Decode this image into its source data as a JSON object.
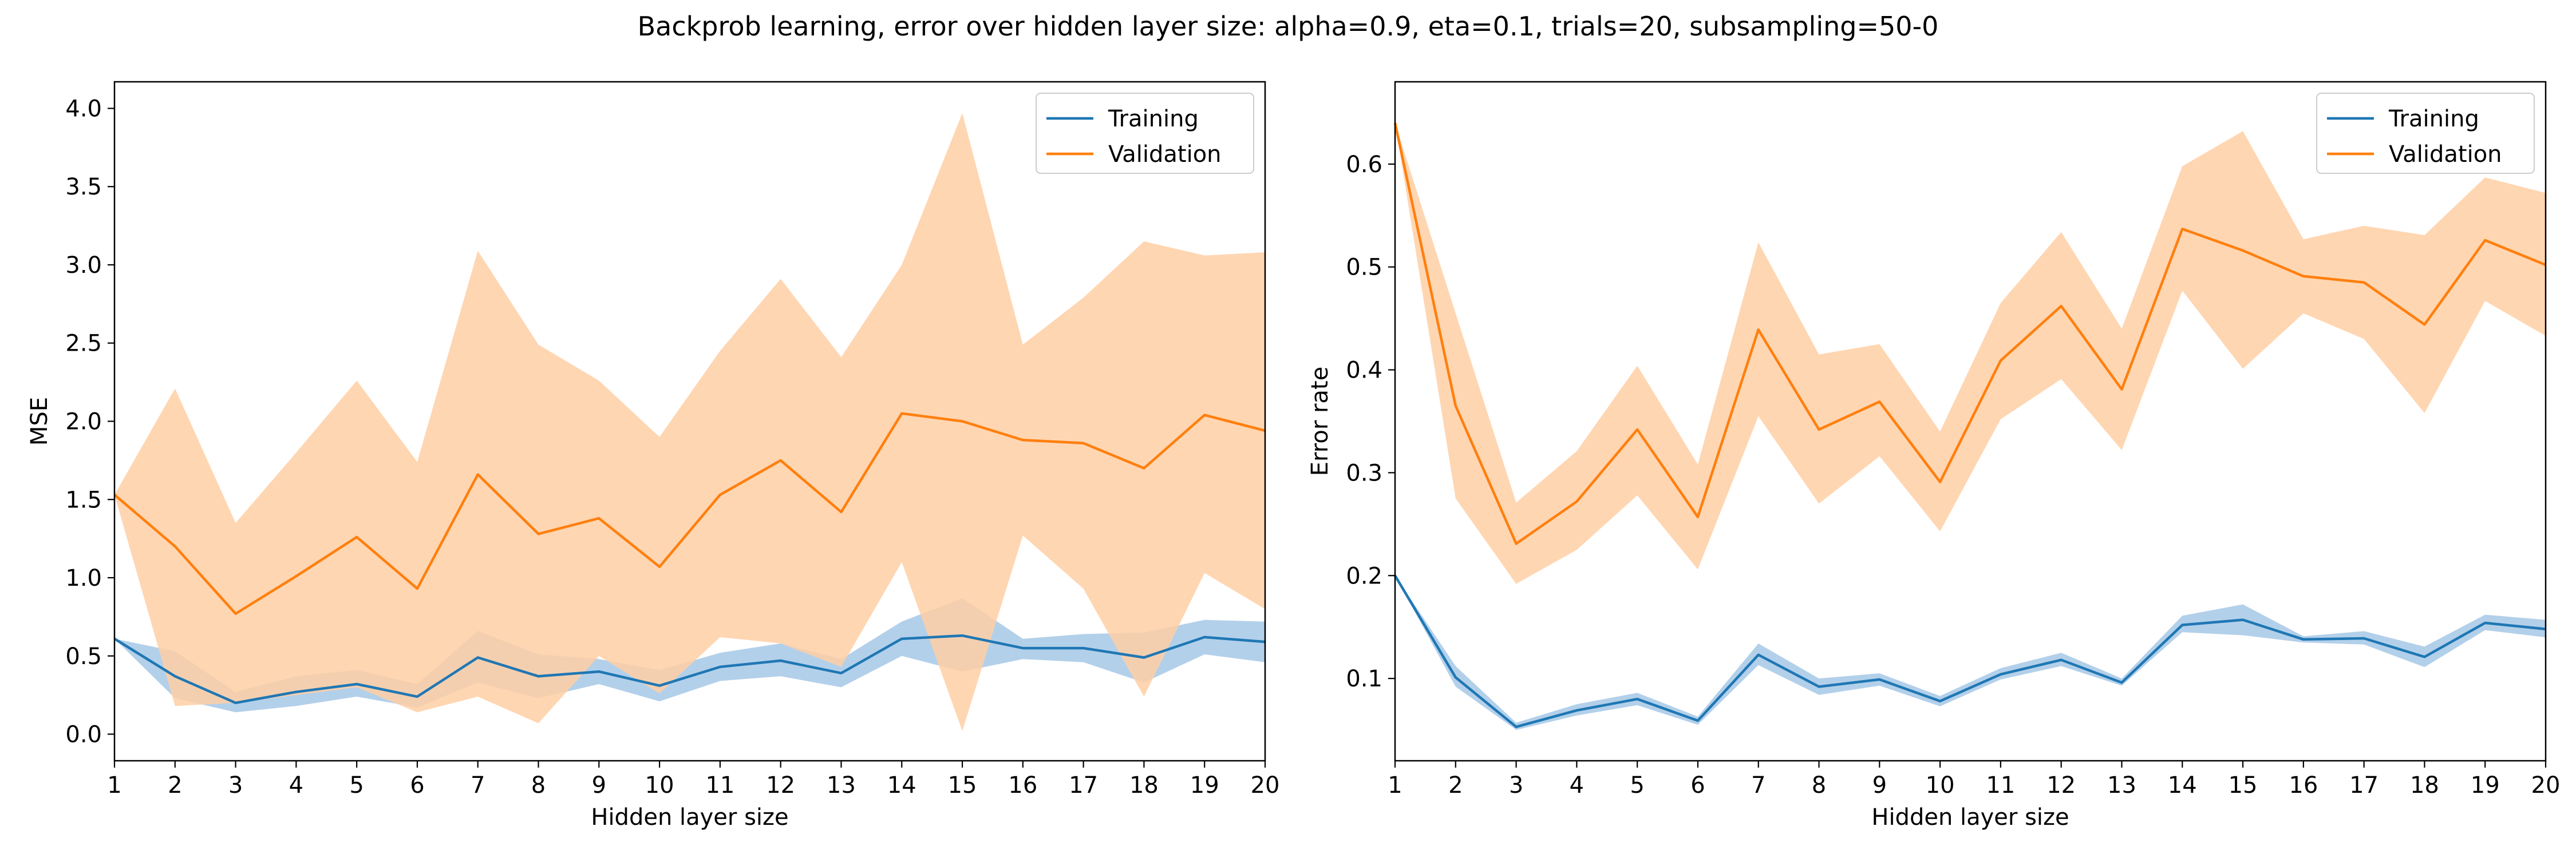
{
  "figure": {
    "suptitle": "Backprob learning, error over hidden layer size: alpha=0.9, eta=0.1, trials=20, subsampling=50-0"
  },
  "colors": {
    "training": "#1f77b4",
    "training_band": "#a6c8e6",
    "validation": "#ff7f0e",
    "validation_band": "#ffcfa5"
  },
  "chart_data": [
    {
      "type": "line",
      "title": "",
      "xlabel": "Hidden layer size",
      "ylabel": "MSE",
      "xlim": [
        1,
        20
      ],
      "ylim": [
        -0.17,
        4.17
      ],
      "grid": false,
      "legend_location": "top-right",
      "xticks": [
        1,
        2,
        3,
        4,
        5,
        6,
        7,
        8,
        9,
        10,
        11,
        12,
        13,
        14,
        15,
        16,
        17,
        18,
        19,
        20
      ],
      "yticks": [
        0.0,
        0.5,
        1.0,
        1.5,
        2.0,
        2.5,
        3.0,
        3.5,
        4.0
      ],
      "ytick_labels": [
        "0.0",
        "0.5",
        "1.0",
        "1.5",
        "2.0",
        "2.5",
        "3.0",
        "3.5",
        "4.0"
      ],
      "x": [
        1,
        2,
        3,
        4,
        5,
        6,
        7,
        8,
        9,
        10,
        11,
        12,
        13,
        14,
        15,
        16,
        17,
        18,
        19,
        20
      ],
      "series": [
        {
          "name": "Training",
          "color": "#1f77b4",
          "band_color": "#a6c8e6",
          "values": [
            0.61,
            0.37,
            0.2,
            0.27,
            0.32,
            0.24,
            0.49,
            0.37,
            0.4,
            0.31,
            0.43,
            0.47,
            0.39,
            0.61,
            0.63,
            0.55,
            0.55,
            0.49,
            0.62,
            0.59
          ],
          "lower": [
            0.61,
            0.23,
            0.14,
            0.18,
            0.24,
            0.17,
            0.33,
            0.23,
            0.32,
            0.21,
            0.34,
            0.37,
            0.3,
            0.5,
            0.4,
            0.48,
            0.46,
            0.33,
            0.51,
            0.46
          ],
          "upper": [
            0.61,
            0.53,
            0.27,
            0.37,
            0.41,
            0.32,
            0.66,
            0.51,
            0.48,
            0.41,
            0.52,
            0.58,
            0.48,
            0.72,
            0.87,
            0.61,
            0.64,
            0.65,
            0.73,
            0.72
          ]
        },
        {
          "name": "Validation",
          "color": "#ff7f0e",
          "band_color": "#ffcfa5",
          "values": [
            1.53,
            1.2,
            0.77,
            1.01,
            1.26,
            0.93,
            1.66,
            1.28,
            1.38,
            1.07,
            1.53,
            1.75,
            1.42,
            2.05,
            2.0,
            1.88,
            1.86,
            1.7,
            2.04,
            1.94
          ],
          "lower": [
            1.53,
            0.18,
            0.2,
            0.25,
            0.3,
            0.14,
            0.24,
            0.07,
            0.5,
            0.26,
            0.62,
            0.58,
            0.43,
            1.1,
            0.02,
            1.27,
            0.93,
            0.24,
            1.03,
            0.8
          ],
          "upper": [
            1.53,
            2.21,
            1.35,
            1.8,
            2.26,
            1.74,
            3.09,
            2.49,
            2.26,
            1.9,
            2.45,
            2.91,
            2.41,
            3.0,
            3.97,
            2.49,
            2.79,
            3.15,
            3.06,
            3.08
          ]
        }
      ]
    },
    {
      "type": "line",
      "title": "",
      "xlabel": "Hidden layer size",
      "ylabel": "Error rate",
      "xlim": [
        1,
        20
      ],
      "ylim": [
        0.02,
        0.68
      ],
      "grid": false,
      "legend_location": "top-right",
      "xticks": [
        1,
        2,
        3,
        4,
        5,
        6,
        7,
        8,
        9,
        10,
        11,
        12,
        13,
        14,
        15,
        16,
        17,
        18,
        19,
        20
      ],
      "yticks": [
        0.1,
        0.2,
        0.3,
        0.4,
        0.5,
        0.6
      ],
      "ytick_labels": [
        "0.1",
        "0.2",
        "0.3",
        "0.4",
        "0.5",
        "0.6"
      ],
      "x": [
        1,
        2,
        3,
        4,
        5,
        6,
        7,
        8,
        9,
        10,
        11,
        12,
        13,
        14,
        15,
        16,
        17,
        18,
        19,
        20
      ],
      "series": [
        {
          "name": "Training",
          "color": "#1f77b4",
          "band_color": "#a6c8e6",
          "values": [
            0.2,
            0.101,
            0.053,
            0.069,
            0.08,
            0.059,
            0.123,
            0.092,
            0.099,
            0.078,
            0.104,
            0.118,
            0.096,
            0.152,
            0.157,
            0.138,
            0.139,
            0.121,
            0.154,
            0.148
          ],
          "lower": [
            0.2,
            0.092,
            0.05,
            0.064,
            0.074,
            0.055,
            0.113,
            0.084,
            0.093,
            0.073,
            0.099,
            0.112,
            0.093,
            0.145,
            0.142,
            0.135,
            0.133,
            0.111,
            0.147,
            0.14
          ],
          "upper": [
            0.2,
            0.112,
            0.057,
            0.075,
            0.086,
            0.063,
            0.134,
            0.1,
            0.105,
            0.083,
            0.11,
            0.125,
            0.1,
            0.161,
            0.172,
            0.141,
            0.146,
            0.131,
            0.162,
            0.157
          ]
        },
        {
          "name": "Validation",
          "color": "#ff7f0e",
          "band_color": "#ffcfa5",
          "values": [
            0.64,
            0.365,
            0.231,
            0.272,
            0.342,
            0.257,
            0.439,
            0.342,
            0.369,
            0.291,
            0.409,
            0.462,
            0.381,
            0.537,
            0.516,
            0.491,
            0.485,
            0.444,
            0.526,
            0.502
          ],
          "lower": [
            0.64,
            0.275,
            0.192,
            0.225,
            0.278,
            0.206,
            0.355,
            0.27,
            0.316,
            0.243,
            0.352,
            0.391,
            0.322,
            0.477,
            0.401,
            0.455,
            0.43,
            0.358,
            0.467,
            0.433
          ],
          "upper": [
            0.64,
            0.455,
            0.271,
            0.321,
            0.404,
            0.308,
            0.524,
            0.415,
            0.425,
            0.34,
            0.465,
            0.534,
            0.44,
            0.598,
            0.632,
            0.527,
            0.54,
            0.531,
            0.587,
            0.572
          ]
        }
      ]
    }
  ]
}
